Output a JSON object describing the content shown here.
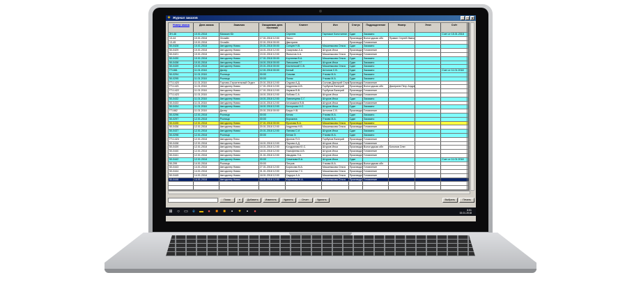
{
  "window": {
    "title": "Журнал заказов",
    "controls": [
      "_",
      "□",
      "×"
    ]
  },
  "columns": [
    "Номер заказа",
    "Дата заказа",
    "Заказчик",
    "Ожидаемая дата поставки",
    "Клиент",
    "Исп",
    "Статус",
    "Подразделение",
    "Номер",
    "Этап",
    "Счёт",
    ""
  ],
  "rows": [
    {
      "h": "cyan",
      "c": [
        "ЗН-46",
        "10.01.2018",
        "Магазин Юг",
        "",
        "Сергеев",
        "Гарнизон Константин",
        "Сдан",
        "Заказано",
        "",
        "",
        "Счет от 15.01.2018",
        ""
      ]
    },
    {
      "h": "white",
      "c": [
        "13-44",
        "10.01.2018",
        "Онлайн",
        "17.01.2018 12:00",
        "Лиссо",
        "",
        "Производство",
        "Вологодская обл",
        "Правин Сергей Иванович",
        "",
        "",
        ""
      ]
    },
    {
      "h": "white",
      "c": [
        "13-45",
        "10.01.2018",
        "Онлайн",
        "22.01.2018 00:00",
        "Дмитриев",
        "",
        "Производство",
        "Готовление",
        "",
        "",
        "",
        ""
      ]
    },
    {
      "h": "cyan",
      "c": [
        "50-0428",
        "10.01.2018",
        "Автодилер Новик",
        "20.01.2018 00:00",
        "Сонцев Н.В.",
        "Мишиныкова Ольга",
        "Сдан",
        "Заказано",
        "",
        "",
        "",
        ""
      ]
    },
    {
      "h": "white",
      "c": [
        "50-0429",
        "10.01.2018",
        "Автодилер Новик",
        "18.01.2018 12:00",
        "Смирнова А.А.",
        "Штуров Илья",
        "Производство",
        "Готовление",
        "",
        "",
        "",
        ""
      ]
    },
    {
      "h": "white",
      "c": [
        "50-0421",
        "10.01.2018",
        "Автодилер Новик",
        "19.01.2018 12:00",
        "Ямполов А.А.",
        "Мишиныкова Ольга",
        "Производство",
        "Готовление",
        "",
        "",
        "",
        ""
      ]
    },
    {
      "h": "cyan",
      "c": [
        "50-0430",
        "10.01.2018",
        "Автодилер Новик",
        "17.01.2018 00:00",
        "Корнеева В.А.",
        "Мишиныкова Ольга",
        "Сдан",
        "Заказано",
        "",
        "",
        "",
        ""
      ]
    },
    {
      "h": "cyan",
      "c": [
        "50-0438",
        "10.01.2018",
        "Автодилер Новик",
        "18.01.2018 00:00",
        "Латышева Т.Г.",
        "Штуров Илья",
        "Сдан",
        "Заказано",
        "",
        "",
        "",
        ""
      ]
    },
    {
      "h": "cyan",
      "c": [
        "50-0439",
        "10.01.2018",
        "Автодилер Новик",
        "20.01.2018 00:00",
        "Кислинский С.В.",
        "Мишиныкова Ольга",
        "Сдан",
        "Заказано",
        "",
        "",
        "",
        ""
      ]
    },
    {
      "h": "cyan",
      "c": [
        "ГП-661",
        "11.01.2018",
        "Дилер",
        "12.01.2018 00:00",
        "Белый",
        "Антонов С.В.",
        "Сдан",
        "Заказано",
        "",
        "",
        "Счет от 11.01.2018",
        ""
      ]
    },
    {
      "h": "cyan",
      "c": [
        "50-0294",
        "11.01.2018",
        "Розница",
        "00:00",
        "Сомова",
        "Уткова М.А.",
        "Сдан",
        "Заказано",
        "",
        "",
        "",
        ""
      ]
    },
    {
      "h": "cyan",
      "c": [
        "50-0295",
        "11.01.2018",
        "Розница",
        "00:00",
        "Поляк",
        "Уткова М.А.",
        "Сдан",
        "Заказано",
        "",
        "",
        "",
        ""
      ]
    },
    {
      "h": "white",
      "c": [
        "ГП-1420",
        "11.01.2018",
        "Торгово-Строительный Отдел",
        "20.01.2018 12:00",
        "Седова А.Д.",
        "Салова Дмитрий Сергеевич",
        "Производство",
        "Готовление",
        "",
        "",
        "",
        ""
      ]
    },
    {
      "h": "white",
      "c": [
        "ГП-1421",
        "11.01.2018",
        "Автодилер Новик",
        "17.01.2018 12:00",
        "Андреева А.В.",
        "Горбунов Валерий",
        "Производство",
        "Вологодская обл",
        "Дмитриев Петр Андреевич",
        "",
        "",
        ""
      ]
    },
    {
      "h": "white",
      "c": [
        "ГП-1422",
        "11.01.2018",
        "Автодилер Новик",
        "17.01.2018 12:00",
        "Наумов В.В.",
        "Горбунов Валерий",
        "Производство",
        "Готовление",
        "",
        "",
        "",
        ""
      ]
    },
    {
      "h": "white",
      "c": [
        "ГП-1423",
        "11.01.2018",
        "Автодилер Новик",
        "18.01.2018 12:00",
        "Лобова С.А.",
        "Штуров Илья",
        "Производство",
        "Готовление",
        "",
        "",
        "",
        ""
      ]
    },
    {
      "h": "cyan",
      "c": [
        "50-0432",
        "11.01.2018",
        "Автодилер Новик",
        "18.01.2018 12:00",
        "Павлинцева С.Г.",
        "Штуров Илья",
        "Сдан",
        "Заказано",
        "",
        "",
        "",
        ""
      ]
    },
    {
      "h": "white",
      "c": [
        "50-0433",
        "11.01.2018",
        "Автодилер Новик",
        "18.01.2018 12:00",
        "Анчишкина В.В.",
        "Штуров Илья",
        "Производство",
        "Готовление",
        "",
        "",
        "",
        ""
      ]
    },
    {
      "h": "cyan",
      "c": [
        "50-0434",
        "11.01.2018",
        "Автодилер Новик",
        "18.01.2018 12:00",
        "Белоусова Н.С.",
        "Штуров Илья",
        "Сдан",
        "Заказано",
        "",
        "",
        "",
        ""
      ]
    },
    {
      "h": "white",
      "c": [
        "ГП-662",
        "11.01.2018",
        "Дилер",
        "20.01.2018 00:00",
        "Бирук Н.В.",
        "Антонов С.В.",
        "Производство",
        "Готовление",
        "",
        "",
        "",
        ""
      ]
    },
    {
      "h": "cyan",
      "c": [
        "50-0296",
        "12.01.2018",
        "Розница",
        "00:00",
        "Белик",
        "Уткова М.А.",
        "Сдан",
        "Заказано",
        "",
        "",
        "",
        ""
      ]
    },
    {
      "h": "cyan",
      "c": [
        "50-0297",
        "12.01.2018",
        "Розница",
        "00:00",
        "Ворокина",
        "Уткова М.А.",
        "Сдан",
        "Заказано",
        "",
        "",
        "",
        ""
      ]
    },
    {
      "h": "yellow",
      "c": [
        "50-0435",
        "12.01.2018",
        "Автодилер Новик",
        "27.01.2018 00:00",
        "Фролова В.А.",
        "Мишиныкова Ольга",
        "Производство",
        "Заказано",
        "",
        "",
        "",
        ""
      ]
    },
    {
      "h": "white",
      "c": [
        "50-0436",
        "12.01.2018",
        "Автодилер Новик",
        "20.01.2018 12:00",
        "Андреева Н.В.",
        "Мишиныкова Ольга",
        "Производство",
        "Готовление",
        "",
        "",
        "",
        ""
      ]
    },
    {
      "h": "cyan",
      "c": [
        "50-0437",
        "12.01.2018",
        "Автодилер Новик",
        "20.01.2018 12:00",
        "Панова С.И.",
        "Штуров Илья",
        "Сдан",
        "Заказано",
        "",
        "",
        "",
        ""
      ]
    },
    {
      "h": "cyan",
      "c": [
        "50-0298",
        "12.01.2018",
        "Розница",
        "00:00",
        "Белая Э.",
        "Уткова М.А.",
        "Сдан",
        "Заказано",
        "",
        "",
        "",
        ""
      ]
    },
    {
      "h": "white",
      "c": [
        "ГП-1424",
        "12.01.2018",
        "Автодилер Плюс",
        "",
        "Дронов П.О.",
        "Горбунов Валерий",
        "Производство",
        "Готовление",
        "",
        "",
        "",
        ""
      ]
    },
    {
      "h": "white",
      "c": [
        "50-0438",
        "12.01.2018",
        "Автодилер Новик",
        "18.01.2018 12:00",
        "Пирова А.Д.",
        "Штуров Илья",
        "Производство",
        "Готовление",
        "",
        "",
        "",
        ""
      ]
    },
    {
      "h": "white",
      "c": [
        "50-0439",
        "12.01.2018",
        "Автодилер Новик",
        "18.01.2018 12:00",
        "Кондратова Ю.С.",
        "Штуров Илья",
        "Производство",
        "Вологодская обл",
        "Кононов Олег",
        "",
        "",
        ""
      ]
    },
    {
      "h": "white",
      "c": [
        "50-0440",
        "12.01.2018",
        "Автодилер Новик",
        "18.01.2018 12:00",
        "Тимофеева А.В.",
        "Штуров Илья",
        "Производство",
        "Готовление",
        "",
        "",
        "",
        ""
      ]
    },
    {
      "h": "white",
      "c": [
        "50-0441",
        "12.01.2018",
        "Автодилер Новик",
        "21.01.2018 12:00",
        "Шкодова Л.А.",
        "Штуров Илья",
        "Производство",
        "Готовление",
        "",
        "",
        "",
        ""
      ]
    },
    {
      "h": "cyan",
      "c": [
        "50-0442",
        "12.01.2018",
        "Автодилер Новик",
        "00:00",
        "Семенова В.А.",
        "Штуров Илья",
        "Сдан",
        "",
        "",
        "",
        "Счет от 11.01.2018",
        ""
      ]
    },
    {
      "h": "white",
      "c": [
        "50-299",
        "14.01.2018",
        "Розница",
        "00:00",
        "Петров",
        "Уткова М.А.",
        "Производство",
        "Вологодская обл",
        "",
        "",
        "",
        ""
      ]
    },
    {
      "h": "white",
      "c": [
        "50-0443",
        "14.01.2018",
        "Автодилер Новик",
        "27.01.2018 12:00",
        "Борисова М.А.",
        "Мишиныкова Ольга",
        "Производство",
        "Готовление",
        "",
        "",
        "",
        ""
      ]
    },
    {
      "h": "white",
      "c": [
        "50-0444",
        "14.01.2018",
        "Автодилер Новик",
        "01.01.2018 12:00",
        "Борисенко Г.С.",
        "Мишиныкова Ольга",
        "Производство",
        "Готовление",
        "",
        "",
        "",
        ""
      ]
    },
    {
      "h": "white",
      "c": [
        "50-0445",
        "14.01.2018",
        "Автодилер Новик",
        "18.01.2018 12:00",
        "Сидора А.А.",
        "Мишиныкова Ольга",
        "Производство",
        "Готовление",
        "",
        "",
        "",
        ""
      ]
    },
    {
      "h": "sel",
      "c": [
        "50-0446",
        "14.01.2018",
        "Автодилер Новик",
        "18.01.2018 12:00",
        "Короткова Н.А.",
        "Мишиныкова Ольга",
        "Производство",
        "Готовление",
        "",
        "",
        "",
        ""
      ]
    }
  ],
  "bottom": {
    "search_placeholder": "",
    "buttons": [
      "Поиск",
      "▾",
      "Добавить",
      "Изменить",
      "Удалить",
      "Отчет",
      "Удалить"
    ],
    "right_buttons": [
      "Выбрать",
      "Печать"
    ]
  },
  "taskbar": {
    "time": "8:51",
    "date": "15.01.2018"
  }
}
